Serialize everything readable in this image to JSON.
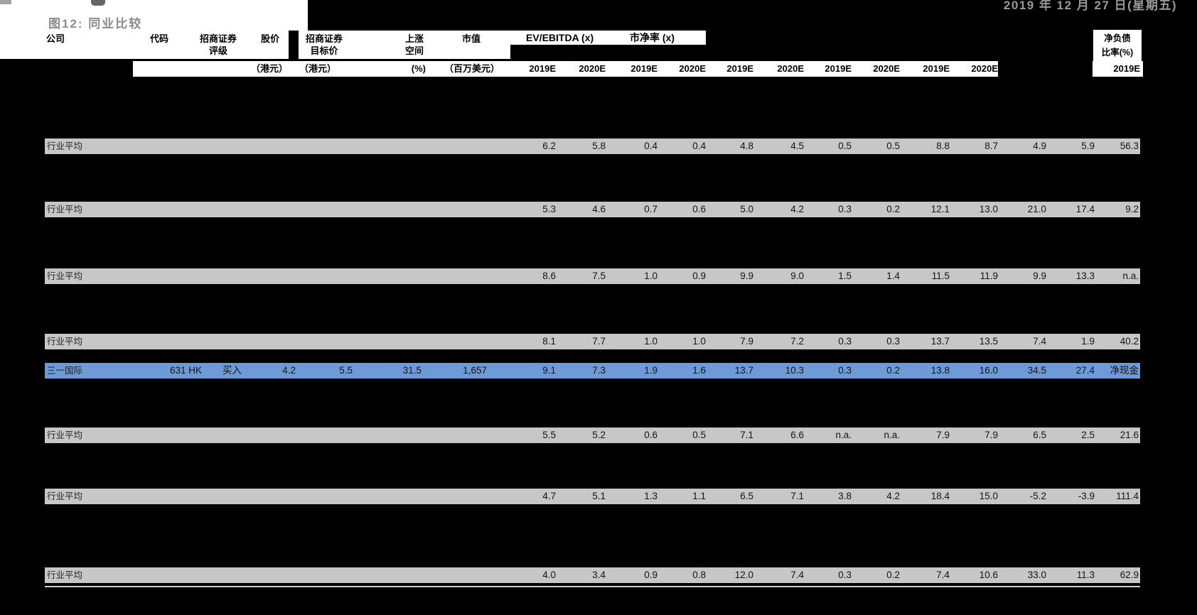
{
  "report": {
    "date": "2019 年 12 月 27 日(星期五)",
    "figure_title": "图12:  同业比较"
  },
  "table": {
    "headers": {
      "company": "公司",
      "code": "代码",
      "rating_l1": "招商证券",
      "rating_l2": "评级",
      "price": "股价",
      "price_unit": "（港元）",
      "target_l1": "招商证券",
      "target_l2": "目标价",
      "target_unit": "（港元）",
      "upside_l1": "上涨",
      "upside_l2": "空间",
      "upside_unit": "(%)",
      "mcap": "市值",
      "mcap_unit": "（百万美元）",
      "group_ev_ebitda": "EV/EBITDA (x)",
      "group_pb": "市净率 (x)",
      "year_cols": [
        "2019E",
        "2020E",
        "2019E",
        "2020E",
        "2019E",
        "2020E",
        "2019E",
        "2020E",
        "2019E",
        "2020E"
      ],
      "net_debt_l1": "净负债",
      "net_debt_l2": "比率(%)",
      "net_debt_year": "2019E"
    },
    "rows": [
      {
        "type": "avg",
        "name": "行业平均",
        "values": [
          "6.2",
          "5.8",
          "0.4",
          "0.4",
          "4.8",
          "4.5",
          "0.5",
          "0.5",
          "8.8",
          "8.7",
          "4.9",
          "5.9",
          "56.3"
        ]
      },
      {
        "type": "avg",
        "name": "行业平均",
        "values": [
          "5.3",
          "4.6",
          "0.7",
          "0.6",
          "5.0",
          "4.2",
          "0.3",
          "0.2",
          "12.1",
          "13.0",
          "21.0",
          "17.4",
          "9.2"
        ]
      },
      {
        "type": "avg",
        "name": "行业平均",
        "values": [
          "8.6",
          "7.5",
          "1.0",
          "0.9",
          "9.9",
          "9.0",
          "1.5",
          "1.4",
          "11.5",
          "11.9",
          "9.9",
          "13.3",
          "n.a."
        ]
      },
      {
        "type": "avg",
        "name": "行业平均",
        "values": [
          "8.1",
          "7.7",
          "1.0",
          "1.0",
          "7.9",
          "7.2",
          "0.3",
          "0.3",
          "13.7",
          "13.5",
          "7.4",
          "1.9",
          "40.2"
        ]
      },
      {
        "type": "highlight",
        "name": "三一国际",
        "code": "631 HK",
        "rating": "买入",
        "price": "4.2",
        "target": "5.5",
        "upside": "31.5",
        "mcap": "1,657",
        "values": [
          "9.1",
          "7.3",
          "1.9",
          "1.6",
          "13.7",
          "10.3",
          "0.3",
          "0.2",
          "13.8",
          "16.0",
          "34.5",
          "27.4",
          "净现金"
        ]
      },
      {
        "type": "avg",
        "name": "行业平均",
        "values": [
          "5.5",
          "5.2",
          "0.6",
          "0.5",
          "7.1",
          "6.6",
          "n.a.",
          "n.a.",
          "7.9",
          "7.9",
          "6.5",
          "2.5",
          "21.6"
        ]
      },
      {
        "type": "avg",
        "name": "行业平均",
        "values": [
          "4.7",
          "5.1",
          "1.3",
          "1.1",
          "6.5",
          "7.1",
          "3.8",
          "4.2",
          "18.4",
          "15.0",
          "-5.2",
          "-3.9",
          "111.4"
        ]
      },
      {
        "type": "avg",
        "name": "行业平均",
        "values": [
          "4.0",
          "3.4",
          "0.9",
          "0.8",
          "12.0",
          "7.4",
          "0.3",
          "0.2",
          "7.4",
          "10.6",
          "33.0",
          "11.3",
          "62.9"
        ]
      }
    ]
  },
  "colors": {
    "canvas": "#000000",
    "header_bg": "#ffffff",
    "avg_row_bg": "#c7c7c7",
    "highlight_row_bg": "#6e9bd7",
    "title_text": "#8c8c8c",
    "date_text": "#9a9a9a"
  }
}
